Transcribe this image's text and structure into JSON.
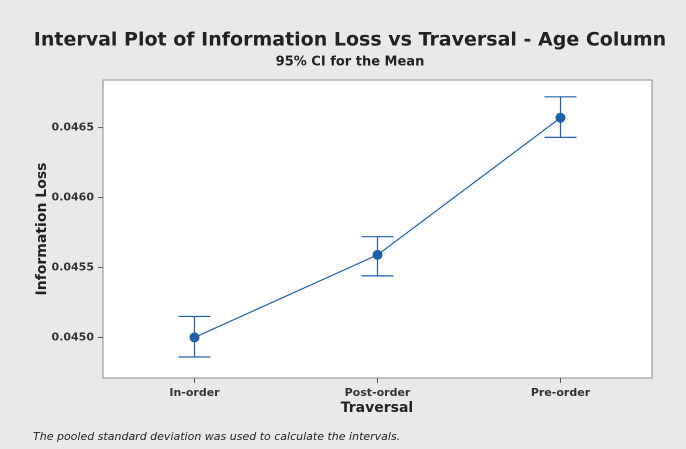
{
  "chart_data": {
    "type": "interval",
    "title": "Interval Plot of Information Loss vs Traversal - Age Column",
    "subtitle": "95% CI for the Mean",
    "xlabel": "Traversal",
    "ylabel": "Information Loss",
    "footnote": "The pooled standard deviation was used to calculate the intervals.",
    "categories": [
      "In-order",
      "Post-order",
      "Pre-order"
    ],
    "values": [
      0.045,
      0.04559,
      0.04657
    ],
    "lower": [
      0.04486,
      0.04544,
      0.04643
    ],
    "upper": [
      0.04515,
      0.04572,
      0.04672
    ],
    "color": "#1f5fa8",
    "ylim": [
      0.04471,
      0.04684
    ],
    "yticks": [
      {
        "value": 0.045,
        "label": "0.0450"
      },
      0.0455,
      {
        "value": 0.046,
        "label": "0.0460"
      },
      0.0465
    ]
  }
}
